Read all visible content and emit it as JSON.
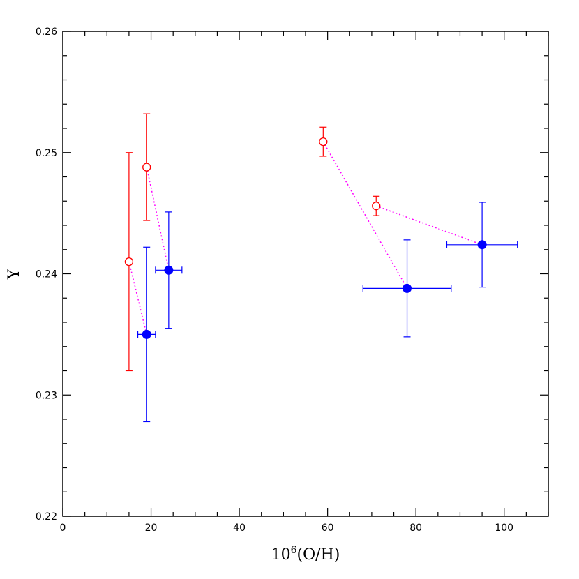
{
  "chart_data": {
    "type": "scatter",
    "xlabel": "10",
    "xlabel_sup": "6",
    "xlabel_tail": "(O/H)",
    "ylabel": "Y",
    "xlim": [
      0,
      110
    ],
    "ylim": [
      0.22,
      0.26
    ],
    "x_major_ticks": [
      0,
      20,
      40,
      60,
      80,
      100
    ],
    "x_tick_labels": [
      "0",
      "20",
      "40",
      "60",
      "80",
      "100"
    ],
    "y_major_ticks": [
      0.22,
      0.23,
      0.24,
      0.25,
      0.26
    ],
    "y_tick_labels": [
      "0.22",
      "0.23",
      "0.24",
      "0.25",
      "0.26"
    ],
    "grid": false,
    "series": [
      {
        "marker": "open-circle",
        "color": "#ff0000",
        "points": [
          {
            "x": 15,
            "y": 0.241,
            "yerr_low": 0.232,
            "yerr_high": 0.25
          },
          {
            "x": 19,
            "y": 0.2488,
            "yerr_low": 0.2444,
            "yerr_high": 0.2532
          },
          {
            "x": 59,
            "y": 0.2509,
            "yerr_low": 0.2497,
            "yerr_high": 0.2521
          },
          {
            "x": 71,
            "y": 0.2456,
            "yerr_low": 0.2448,
            "yerr_high": 0.2464
          }
        ]
      },
      {
        "marker": "filled-circle",
        "color": "#0000ff",
        "points": [
          {
            "x": 19,
            "y": 0.235,
            "xerr_low": 17,
            "xerr_high": 21,
            "yerr_low": 0.2278,
            "yerr_high": 0.2422
          },
          {
            "x": 24,
            "y": 0.2403,
            "xerr_low": 21,
            "xerr_high": 27,
            "yerr_low": 0.2355,
            "yerr_high": 0.2451
          },
          {
            "x": 78,
            "y": 0.2388,
            "xerr_low": 68,
            "xerr_high": 88,
            "yerr_low": 0.2348,
            "yerr_high": 0.2428
          },
          {
            "x": 95,
            "y": 0.2424,
            "xerr_low": 87,
            "xerr_high": 103,
            "yerr_low": 0.2389,
            "yerr_high": 0.2459
          }
        ]
      }
    ],
    "connectors": {
      "color": "#ff00ff",
      "style": "dotted",
      "paths": [
        [
          {
            "x": 15,
            "y": 0.241
          },
          {
            "x": 19,
            "y": 0.235
          }
        ],
        [
          {
            "x": 19,
            "y": 0.2488
          },
          {
            "x": 24,
            "y": 0.2403
          }
        ],
        [
          {
            "x": 59,
            "y": 0.2509
          },
          {
            "x": 78,
            "y": 0.2388
          }
        ],
        [
          {
            "x": 71,
            "y": 0.2456
          },
          {
            "x": 95,
            "y": 0.2424
          }
        ]
      ]
    }
  }
}
